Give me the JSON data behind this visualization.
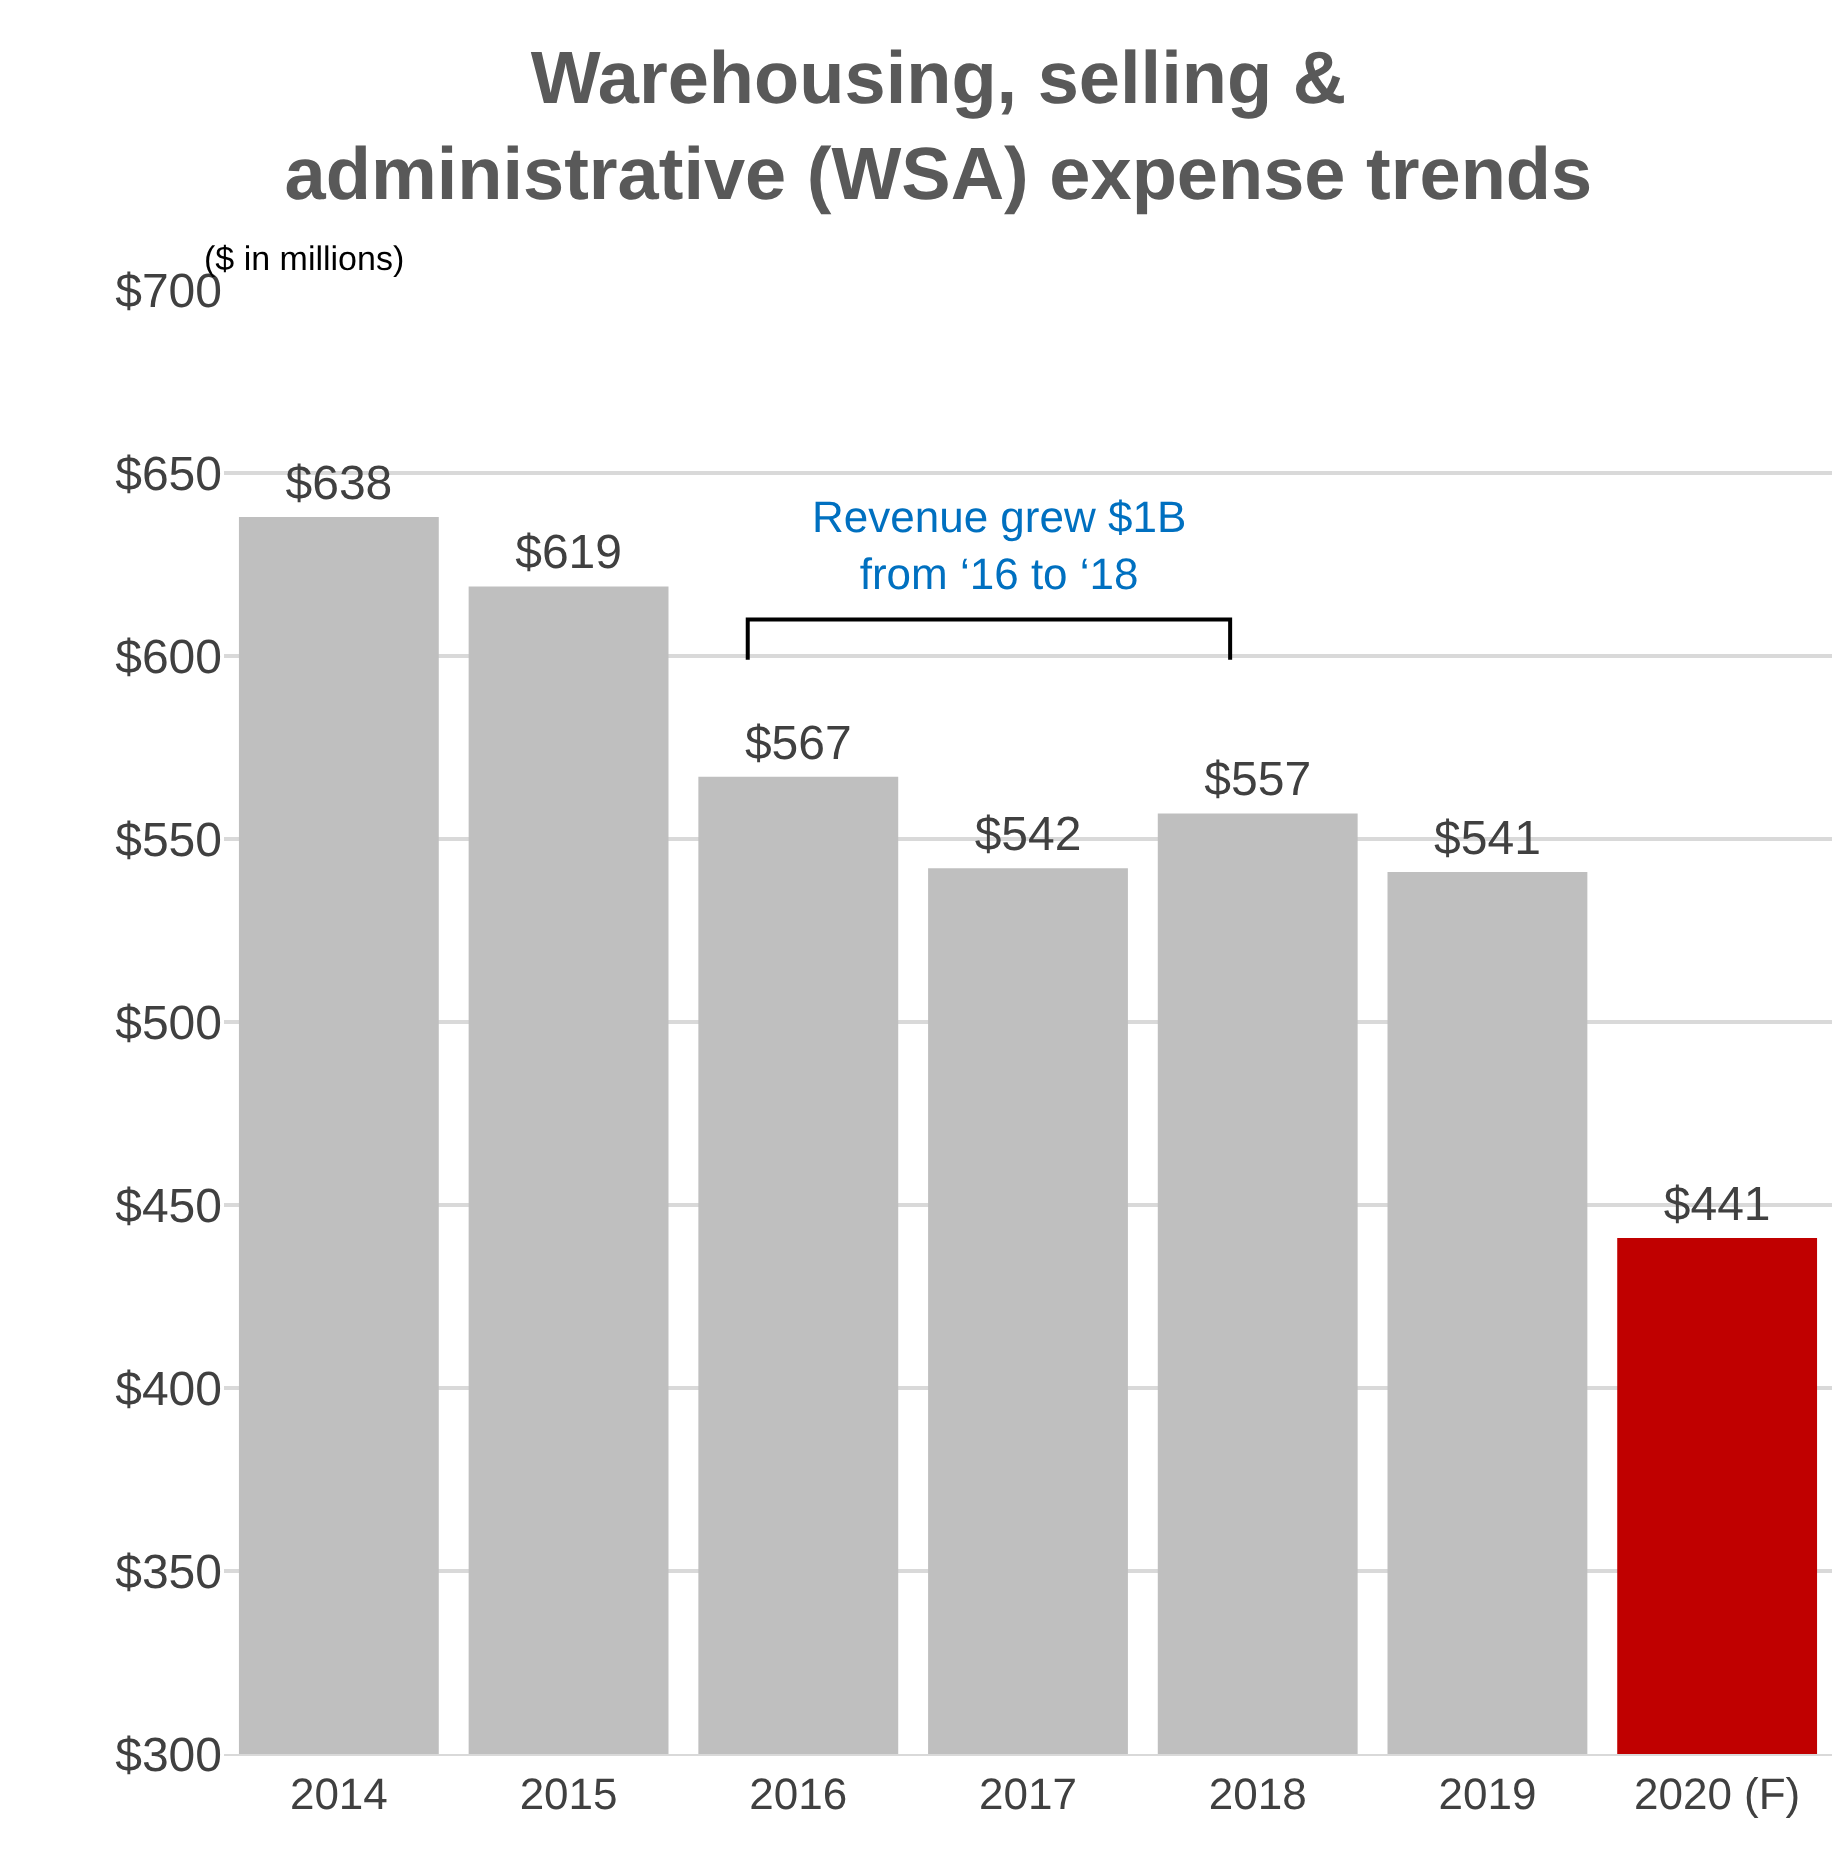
{
  "chart_data": {
    "type": "bar",
    "title": "Warehousing, selling &\nadministrative (WSA) expense trends",
    "subtitle": "($ in millions)",
    "categories": [
      "2014",
      "2015",
      "2016",
      "2017",
      "2018",
      "2019",
      "2020 (F)"
    ],
    "values": [
      638,
      619,
      567,
      542,
      557,
      541,
      441
    ],
    "colors": [
      "#bfbfbf",
      "#bfbfbf",
      "#bfbfbf",
      "#bfbfbf",
      "#bfbfbf",
      "#bfbfbf",
      "#c00000"
    ],
    "value_labels": [
      "$638",
      "$619",
      "$567",
      "$542",
      "$557",
      "$541",
      "$441"
    ],
    "annotations": [
      "Revenue grew $1B\nfrom ‘16 to ‘18"
    ],
    "ylim": [
      300,
      700
    ],
    "yticks": [
      {
        "value": 300,
        "label": "$300"
      },
      {
        "value": 350,
        "label": "$350"
      },
      {
        "value": 400,
        "label": "$400"
      },
      {
        "value": 450,
        "label": "$450"
      },
      {
        "value": 500,
        "label": "$500"
      },
      {
        "value": 550,
        "label": "$550"
      },
      {
        "value": 600,
        "label": "$600"
      },
      {
        "value": 650,
        "label": "$650"
      },
      {
        "value": 700,
        "label": "$700"
      }
    ],
    "grid": "y"
  }
}
